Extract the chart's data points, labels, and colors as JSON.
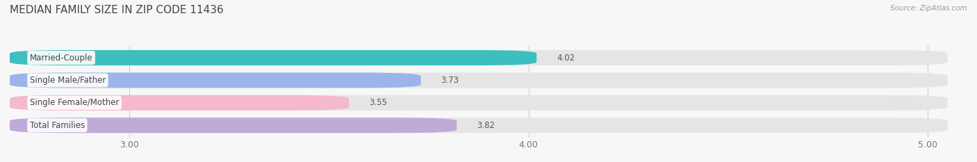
{
  "title": "MEDIAN FAMILY SIZE IN ZIP CODE 11436",
  "source": "Source: ZipAtlas.com",
  "categories": [
    "Married-Couple",
    "Single Male/Father",
    "Single Female/Mother",
    "Total Families"
  ],
  "values": [
    4.02,
    3.73,
    3.55,
    3.82
  ],
  "bar_colors": [
    "#3dbfbf",
    "#9bb5e8",
    "#f5b8cc",
    "#c0aad8"
  ],
  "background_color": "#f7f7f7",
  "bar_bg_color": "#e5e5e5",
  "xlim_min": 2.7,
  "xlim_max": 5.05,
  "xticks": [
    3.0,
    4.0,
    5.0
  ],
  "label_fontsize": 8.5,
  "value_fontsize": 8.5,
  "title_fontsize": 11
}
